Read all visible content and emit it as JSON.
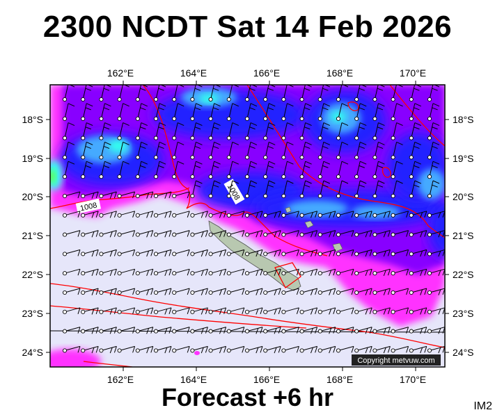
{
  "header": {
    "title": "2300 NCDT Sat 14 Feb 2026"
  },
  "footer": {
    "subtitle": "Forecast +6 hr",
    "image_id": "IM2"
  },
  "map": {
    "lon_range": [
      160,
      171
    ],
    "lat_range": [
      -24.4,
      -17.1
    ],
    "lon_ticks": [
      "162°E",
      "164°E",
      "166°E",
      "168°E",
      "170°E"
    ],
    "lon_tick_values": [
      162,
      164,
      166,
      168,
      170
    ],
    "lat_ticks": [
      "18°S",
      "19°S",
      "20°S",
      "21°S",
      "22°S",
      "23°S",
      "24°S"
    ],
    "lat_tick_values": [
      -18,
      -19,
      -20,
      -21,
      -22,
      -23,
      -24
    ],
    "isobar_labels": [
      "1008",
      "1008"
    ],
    "copyright": "Copyright metvuw.com",
    "colors": {
      "calm": "#e6e6fa",
      "magenta": "#ff33ff",
      "purple": "#8800ff",
      "blue": "#2222ff",
      "sky": "#44aaff",
      "cyan": "#33ffee",
      "green": "#66ff44",
      "isobar": "#ff0000",
      "land": "#b8c8b0"
    }
  }
}
